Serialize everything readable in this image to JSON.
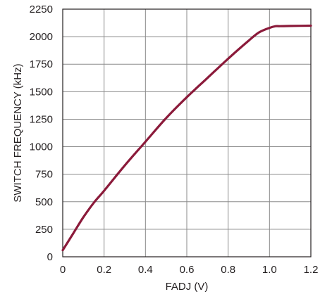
{
  "chart_data": {
    "type": "line",
    "title": "",
    "xlabel": "FADJ (V)",
    "ylabel": "SWITCH FREQUENCY (kHz)",
    "xlim": [
      0,
      1.2
    ],
    "ylim": [
      0,
      2250
    ],
    "x_ticks": [
      "0",
      "0.2",
      "0.4",
      "0.6",
      "0.8",
      "1.0",
      "1.2"
    ],
    "y_ticks": [
      "0",
      "250",
      "500",
      "750",
      "1000",
      "1250",
      "1500",
      "1750",
      "2000",
      "2250"
    ],
    "grid": true,
    "legend": "none",
    "series": [
      {
        "color": "#8b1a3a",
        "x": [
          0,
          0.05,
          0.1,
          0.15,
          0.2,
          0.3,
          0.4,
          0.5,
          0.6,
          0.7,
          0.8,
          0.9,
          0.95,
          1.0,
          1.03,
          1.05,
          1.1,
          1.2
        ],
        "y": [
          60,
          210,
          360,
          490,
          600,
          830,
          1045,
          1260,
          1450,
          1625,
          1800,
          1965,
          2040,
          2080,
          2095,
          2095,
          2097,
          2100
        ]
      }
    ]
  }
}
